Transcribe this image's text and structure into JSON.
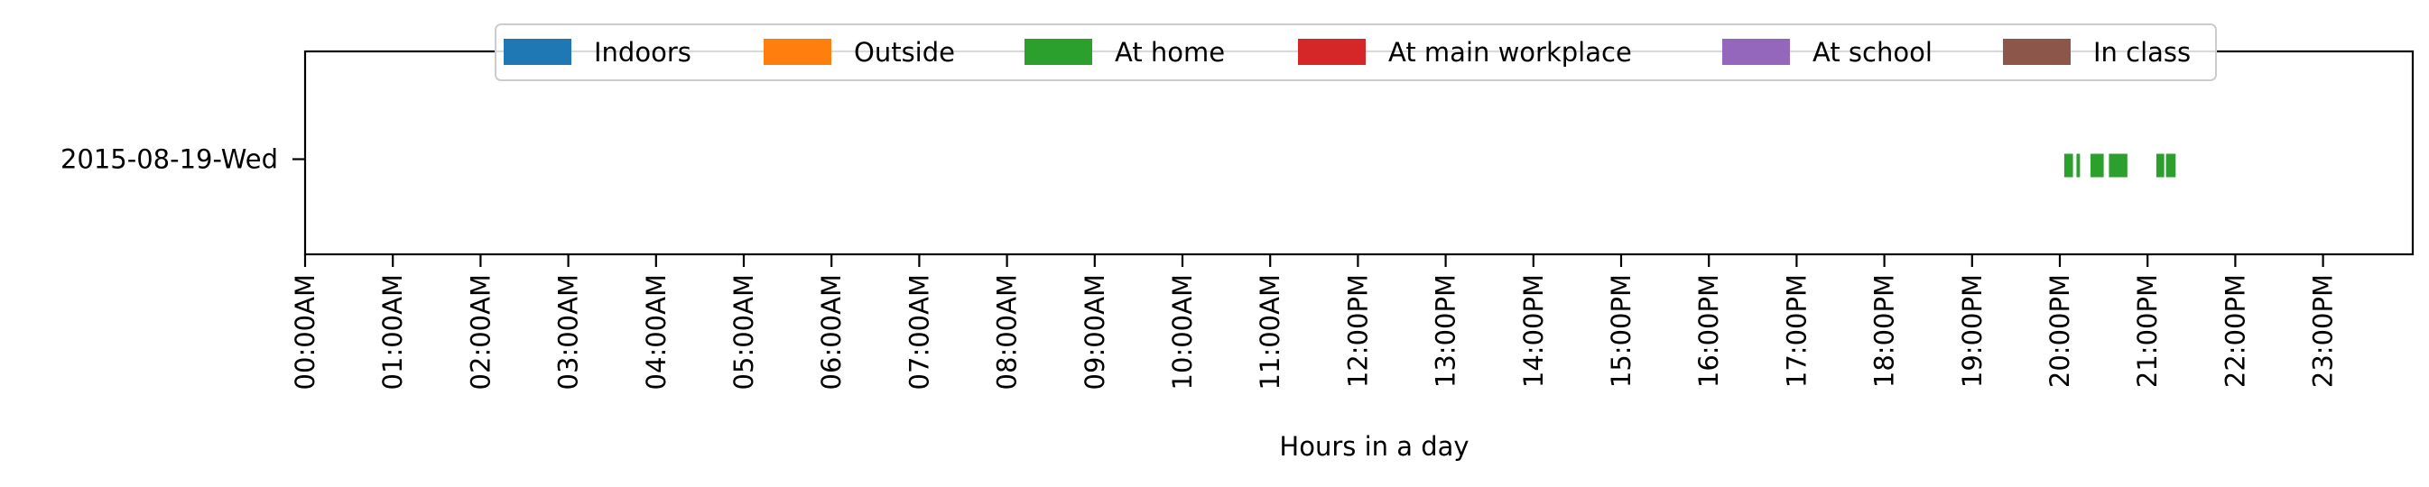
{
  "chart_data": {
    "type": "timeline",
    "title": "",
    "xlabel": "Hours in a day",
    "ylabel": "",
    "xlim": [
      0,
      24
    ],
    "grid": false,
    "legend_position": "top-center",
    "x_ticks": [
      "00:00AM",
      "01:00AM",
      "02:00AM",
      "03:00AM",
      "04:00AM",
      "05:00AM",
      "06:00AM",
      "07:00AM",
      "08:00AM",
      "09:00AM",
      "10:00AM",
      "11:00AM",
      "12:00PM",
      "13:00PM",
      "14:00PM",
      "15:00PM",
      "16:00PM",
      "17:00PM",
      "18:00PM",
      "19:00PM",
      "20:00PM",
      "21:00PM",
      "22:00PM",
      "23:00PM"
    ],
    "categories": [
      "2015-08-19-Wed"
    ],
    "series": [
      {
        "name": "Indoors",
        "color": "#1f77b4",
        "intervals": []
      },
      {
        "name": "Outside",
        "color": "#ff7f0e",
        "intervals": []
      },
      {
        "name": "At home",
        "color": "#2ca02c",
        "intervals": [
          {
            "day": "2015-08-19-Wed",
            "start": 20.05,
            "end": 20.15
          },
          {
            "day": "2015-08-19-Wed",
            "start": 20.19,
            "end": 20.23
          },
          {
            "day": "2015-08-19-Wed",
            "start": 20.35,
            "end": 20.5
          },
          {
            "day": "2015-08-19-Wed",
            "start": 20.56,
            "end": 20.77
          },
          {
            "day": "2015-08-19-Wed",
            "start": 21.1,
            "end": 21.19
          },
          {
            "day": "2015-08-19-Wed",
            "start": 21.21,
            "end": 21.32
          }
        ]
      },
      {
        "name": "At main workplace",
        "color": "#d62728",
        "intervals": []
      },
      {
        "name": "At school",
        "color": "#9467bd",
        "intervals": []
      },
      {
        "name": "In class",
        "color": "#8c564b",
        "intervals": []
      }
    ]
  }
}
